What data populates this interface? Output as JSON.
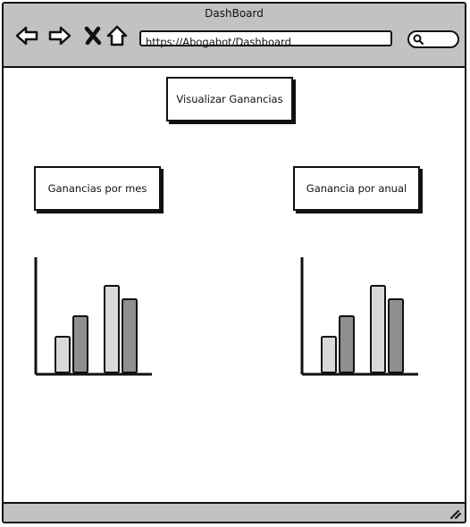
{
  "window": {
    "title": "DashBoard",
    "url": "https://Abogabot/Dashboard",
    "search_value": ""
  },
  "toolbar": {
    "icons": [
      "back-arrow-icon",
      "forward-arrow-icon",
      "close-icon",
      "home-icon"
    ]
  },
  "main": {
    "visualize_button": "Visualizar Ganancias",
    "monthly_button": "Ganancias por mes",
    "annual_button": "Ganancia por anual"
  },
  "chart_data": [
    {
      "type": "bar",
      "values": [
        4,
        6.3,
        9.7,
        8.2
      ],
      "colors": [
        "#d9d9d9",
        "#8f8f8f",
        "#d9d9d9",
        "#8f8f8f"
      ],
      "ylim": [
        0,
        13
      ],
      "xlabel": "",
      "ylabel": ""
    },
    {
      "type": "bar",
      "values": [
        4,
        6.3,
        9.7,
        8.2
      ],
      "colors": [
        "#d9d9d9",
        "#8f8f8f",
        "#d9d9d9",
        "#8f8f8f"
      ],
      "ylim": [
        0,
        13
      ],
      "xlabel": "",
      "ylabel": ""
    }
  ]
}
